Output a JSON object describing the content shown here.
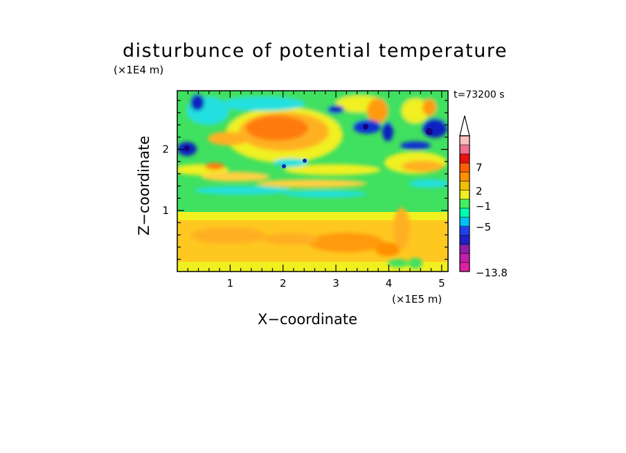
{
  "chart_data": {
    "type": "heatmap",
    "title": "disturbunce of potential temperature",
    "xlabel": "X−coordinate",
    "ylabel": "Z−coordinate",
    "x_scale_note": "(×1E5 m)",
    "z_scale_note": "(×1E4 m)",
    "time_label": "t=73200 s",
    "xlim": [
      0,
      5.12
    ],
    "ylim": [
      0,
      2.96
    ],
    "x_ticks": [
      "1",
      "2",
      "3",
      "4",
      "5"
    ],
    "y_ticks": [
      "1",
      "2"
    ],
    "colorbar": {
      "labels": [
        "7",
        "2",
        "−1",
        "−5",
        "−13.8"
      ],
      "colors_low_to_high": [
        "#e020a0",
        "#c020a8",
        "#9020a8",
        "#2020c8",
        "#2040f0",
        "#00c0f8",
        "#00ffb0",
        "#40f060",
        "#f0f020",
        "#f0c000",
        "#ff9000",
        "#ff6000",
        "#e81010",
        "#f07090",
        "#f8c0c0"
      ],
      "extend_top": true
    },
    "colors": {
      "background_band": "#40e060",
      "warm": "#ffb020",
      "hot": "#ff7000",
      "cool": "#20e0e0",
      "cold": "#1020c0",
      "neutral_yellow": "#f0f020"
    }
  }
}
